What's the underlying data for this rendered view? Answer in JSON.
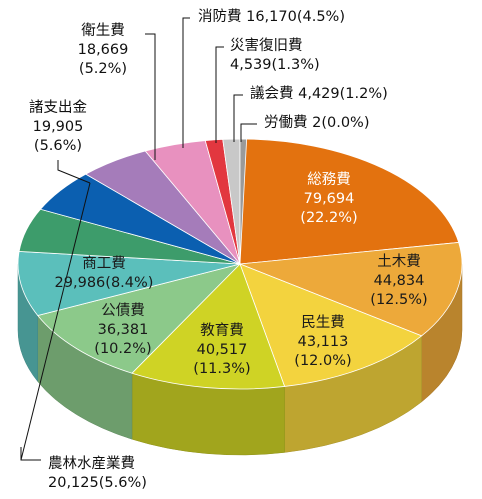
{
  "chart_data": {
    "type": "pie",
    "categories": [
      "総務費",
      "土木費",
      "民生費",
      "教育費",
      "公債費",
      "商工費",
      "農林水産業費",
      "諸支出金",
      "衛生費",
      "消防費",
      "災害復旧費",
      "議会費",
      "労働費"
    ],
    "values": [
      79694,
      44834,
      43113,
      40517,
      36381,
      29986,
      20125,
      19905,
      18669,
      16170,
      4539,
      4429,
      2
    ],
    "percent_labels": [
      "(22.2%)",
      "(12.5%)",
      "(12.0%)",
      "(11.3%)",
      "(10.2%)",
      "(8.4%)",
      "(5.6%)",
      "(5.6%)",
      "(5.2%)",
      "(4.5%)",
      "(1.3%)",
      "(1.2%)",
      "(0.0%)"
    ],
    "value_labels": [
      "79,694",
      "44,834",
      "43,113",
      "40,517",
      "36,381",
      "29,986",
      "20,125",
      "19,905",
      "18,669",
      "16,170",
      "4,539",
      "4,429",
      "2"
    ],
    "colors": [
      "#e3720f",
      "#eda93a",
      "#f3d33e",
      "#cfd325",
      "#8cc98a",
      "#5bbfbb",
      "#3d9c6b",
      "#0b5fb0",
      "#a57cba",
      "#e891bf",
      "#e2373f",
      "#c8c8c8",
      "#9a9a9a"
    ],
    "style": "3d",
    "start": "12 o'clock, clockwise"
  }
}
